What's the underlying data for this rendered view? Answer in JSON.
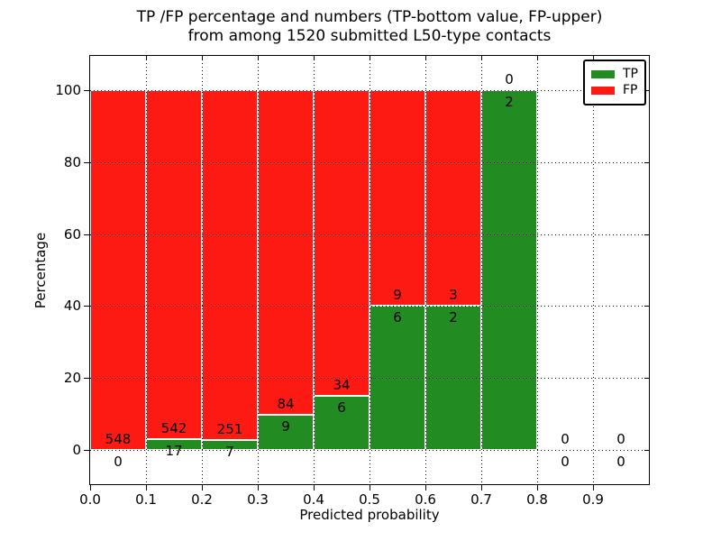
{
  "title": {
    "line1": "TP /FP percentage and numbers (TP-bottom value, FP-upper)",
    "line2": "from among 1520 submitted L50-type contacts"
  },
  "chart_data": {
    "type": "bar",
    "stacked": true,
    "title": "TP /FP percentage and numbers (TP-bottom value, FP-upper) from among 1520 submitted L50-type contacts",
    "total_contacts": 1520,
    "xlabel": "Predicted probability",
    "ylabel": "Percentage",
    "xlim": [
      0.0,
      1.0
    ],
    "ylim": [
      -10,
      110
    ],
    "x_ticks": [
      "0.0",
      "0.1",
      "0.2",
      "0.3",
      "0.4",
      "0.5",
      "0.6",
      "0.7",
      "0.8",
      "0.9"
    ],
    "y_ticks": [
      "0",
      "20",
      "40",
      "60",
      "80",
      "100"
    ],
    "grid": "dotted",
    "bin_width": 0.1,
    "legend_position": "upper right",
    "legend": [
      {
        "label": "TP",
        "color": "#228b22"
      },
      {
        "label": "FP",
        "color": "#fc1a13"
      }
    ],
    "bins": [
      {
        "x_start": 0.0,
        "x_end": 0.1,
        "tp": 0,
        "fp": 548,
        "tp_pct": 0.0,
        "fp_pct": 100.0
      },
      {
        "x_start": 0.1,
        "x_end": 0.2,
        "tp": 17,
        "fp": 542,
        "tp_pct": 3.04,
        "fp_pct": 96.96
      },
      {
        "x_start": 0.2,
        "x_end": 0.3,
        "tp": 7,
        "fp": 251,
        "tp_pct": 2.71,
        "fp_pct": 97.29
      },
      {
        "x_start": 0.3,
        "x_end": 0.4,
        "tp": 9,
        "fp": 84,
        "tp_pct": 9.68,
        "fp_pct": 90.32
      },
      {
        "x_start": 0.4,
        "x_end": 0.5,
        "tp": 6,
        "fp": 34,
        "tp_pct": 15.0,
        "fp_pct": 85.0
      },
      {
        "x_start": 0.5,
        "x_end": 0.6,
        "tp": 6,
        "fp": 9,
        "tp_pct": 40.0,
        "fp_pct": 60.0
      },
      {
        "x_start": 0.6,
        "x_end": 0.7,
        "tp": 2,
        "fp": 3,
        "tp_pct": 40.0,
        "fp_pct": 60.0
      },
      {
        "x_start": 0.7,
        "x_end": 0.8,
        "tp": 2,
        "fp": 0,
        "tp_pct": 100.0,
        "fp_pct": 0.0
      },
      {
        "x_start": 0.8,
        "x_end": 0.9,
        "tp": 0,
        "fp": 0,
        "tp_pct": 0.0,
        "fp_pct": 0.0
      },
      {
        "x_start": 0.9,
        "x_end": 1.0,
        "tp": 0,
        "fp": 0,
        "tp_pct": 0.0,
        "fp_pct": 0.0
      }
    ]
  }
}
